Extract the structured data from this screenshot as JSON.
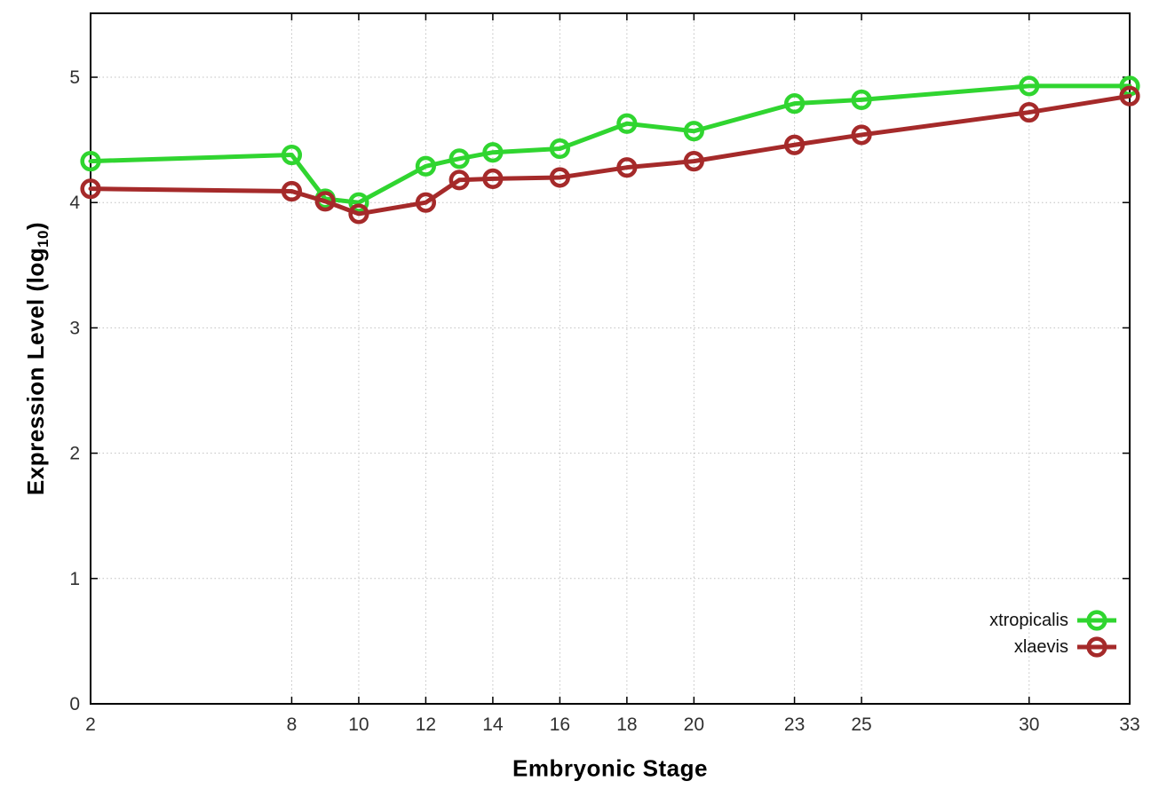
{
  "chart_data": {
    "type": "line",
    "title": "",
    "xlabel": "Embryonic Stage",
    "ylabel": "Expression Level (log10)",
    "ylabel_parts": {
      "main": "Expression Level (log",
      "sub": "10",
      "close": ")"
    },
    "x": [
      2,
      8,
      9,
      10,
      12,
      13,
      14,
      16,
      18,
      20,
      23,
      25,
      30,
      33
    ],
    "xticks": [
      2,
      8,
      10,
      12,
      14,
      16,
      18,
      20,
      23,
      25,
      30,
      33
    ],
    "yticks": [
      0,
      1,
      2,
      3,
      4,
      5
    ],
    "xlim": [
      2,
      33
    ],
    "ylim": [
      0,
      5.51
    ],
    "grid": true,
    "legend_position": "bottom-right",
    "marker": "open-circle",
    "series": [
      {
        "name": "xtropicalis",
        "color": "#30d530",
        "values": [
          4.33,
          4.38,
          4.03,
          4.0,
          4.29,
          4.35,
          4.4,
          4.43,
          4.63,
          4.57,
          4.79,
          4.82,
          4.93,
          4.93
        ]
      },
      {
        "name": "xlaevis",
        "color": "#a52a2a",
        "values": [
          4.11,
          4.09,
          4.01,
          3.91,
          4.0,
          4.18,
          4.19,
          4.2,
          4.28,
          4.33,
          4.46,
          4.54,
          4.72,
          4.85
        ]
      }
    ]
  },
  "colors": {
    "grid": "#c0c0c0",
    "axis": "#000000",
    "tick_text": "#303030"
  }
}
